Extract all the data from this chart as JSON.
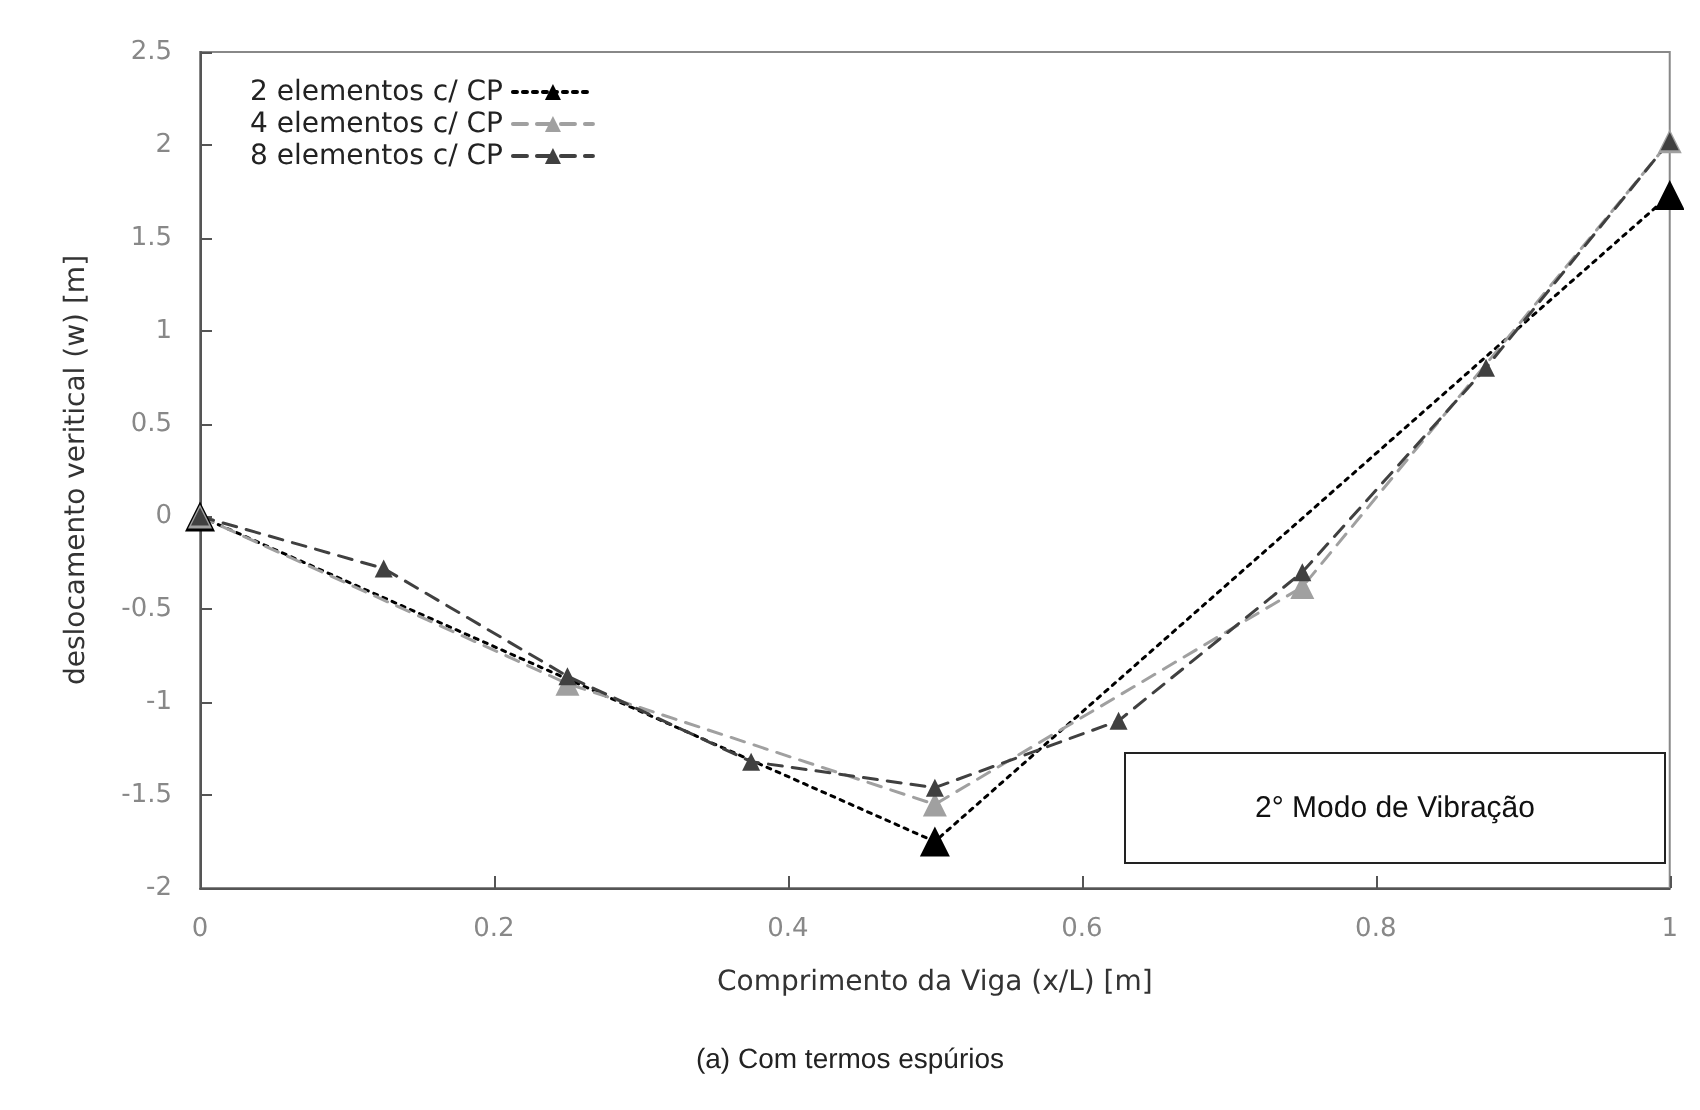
{
  "chart_data": {
    "type": "line",
    "xlabel": "Comprimento da Viga (x/L) [m]",
    "ylabel": "deslocamento veritical (w) [m]",
    "annotations": [
      "2° Modo de Vibração",
      "(a) Com termos espúrios"
    ],
    "xlim": [
      0,
      1
    ],
    "xticks": [
      0,
      0.2,
      0.4,
      0.6,
      0.8,
      1
    ],
    "ylim": [
      -2,
      2.5
    ],
    "yticks": [
      -2,
      -1.5,
      -1,
      -0.5,
      0,
      0.5,
      1,
      1.5,
      2,
      2.5
    ],
    "grid": false,
    "legend": "top left",
    "marker": "triangle",
    "series": [
      {
        "name": "2 elementos c/ CP",
        "color": "#000000",
        "line_style": "dotted",
        "x": [
          0,
          0.5,
          1
        ],
        "values": [
          0,
          -1.75,
          1.73
        ]
      },
      {
        "name": "4 elementos c/ CP",
        "color": "#a0a0a0",
        "line_style": "dashed",
        "x": [
          0,
          0.25,
          0.5,
          0.75,
          1
        ],
        "values": [
          0,
          -0.9,
          -1.55,
          -0.38,
          2.02
        ]
      },
      {
        "name": "8 elementos c/ CP",
        "color": "#404040",
        "line_style": "dashed",
        "x": [
          0,
          0.125,
          0.25,
          0.375,
          0.5,
          0.625,
          0.75,
          0.875,
          1
        ],
        "values": [
          0,
          -0.28,
          -0.86,
          -1.32,
          -1.46,
          -1.1,
          -0.3,
          0.8,
          2.02
        ]
      }
    ]
  }
}
